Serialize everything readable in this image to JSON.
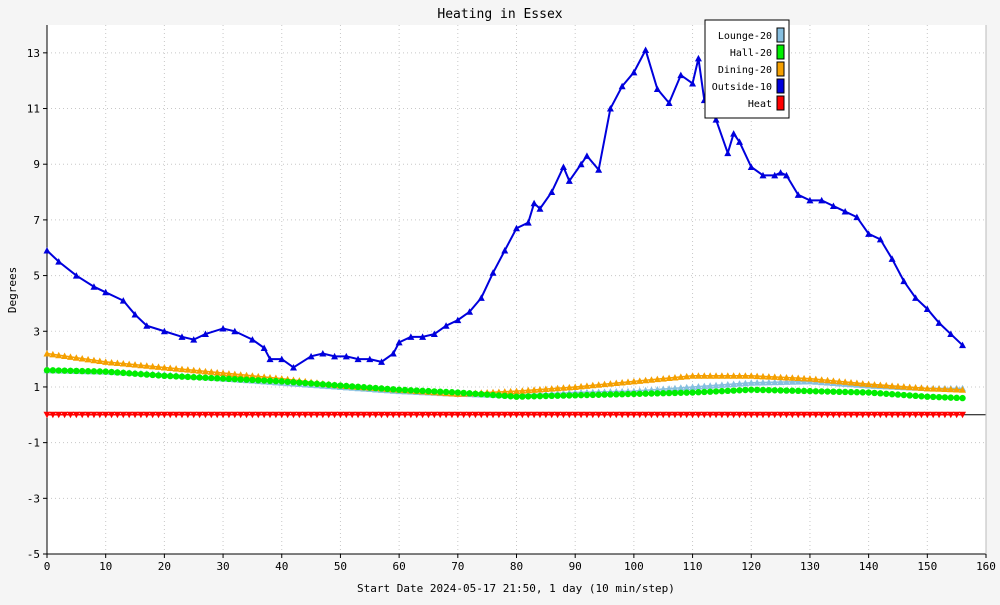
{
  "chart_data": {
    "type": "line",
    "title": "Heating in Essex",
    "xlabel": "Start Date 2024-05-17 21:50, 1 day (10 min/step)",
    "ylabel": "Degrees",
    "xlim": [
      0,
      160
    ],
    "ylim": [
      -5,
      14
    ],
    "x_ticks": [
      0,
      10,
      20,
      30,
      40,
      50,
      60,
      70,
      80,
      90,
      100,
      110,
      120,
      130,
      140,
      150,
      160
    ],
    "y_ticks": [
      -5,
      -3,
      -1,
      1,
      3,
      5,
      7,
      9,
      11,
      13
    ],
    "grid": true,
    "legend_position": "top-right",
    "series": [
      {
        "name": "Lounge-20",
        "color": "#87bfe0",
        "marker": "triangle",
        "x": [
          0,
          10,
          20,
          30,
          40,
          50,
          60,
          70,
          80,
          90,
          100,
          110,
          120,
          130,
          140,
          150,
          156
        ],
        "values": [
          1.6,
          1.55,
          1.45,
          1.3,
          1.15,
          1.0,
          0.85,
          0.75,
          0.7,
          0.8,
          0.85,
          1.0,
          1.15,
          1.2,
          1.05,
          0.95,
          0.95
        ]
      },
      {
        "name": "Hall-20",
        "color": "#00ee00",
        "marker": "circle",
        "x": [
          0,
          10,
          20,
          30,
          40,
          50,
          60,
          70,
          80,
          90,
          100,
          110,
          120,
          130,
          140,
          150,
          156
        ],
        "values": [
          1.6,
          1.55,
          1.4,
          1.3,
          1.2,
          1.05,
          0.9,
          0.8,
          0.65,
          0.7,
          0.75,
          0.8,
          0.9,
          0.85,
          0.8,
          0.65,
          0.6
        ]
      },
      {
        "name": "Dining-20",
        "color": "#f5a000",
        "marker": "triangle",
        "x": [
          0,
          10,
          20,
          30,
          40,
          50,
          60,
          70,
          80,
          90,
          100,
          110,
          120,
          130,
          140,
          150,
          156
        ],
        "values": [
          2.2,
          1.9,
          1.7,
          1.5,
          1.3,
          1.05,
          0.9,
          0.75,
          0.85,
          1.0,
          1.2,
          1.4,
          1.4,
          1.3,
          1.1,
          0.95,
          0.9
        ]
      },
      {
        "name": "Outside-10",
        "color": "#0000dd",
        "marker": "triangle",
        "x": [
          0,
          2,
          5,
          8,
          10,
          13,
          15,
          17,
          20,
          23,
          25,
          27,
          30,
          32,
          35,
          37,
          38,
          40,
          42,
          45,
          47,
          49,
          51,
          53,
          55,
          57,
          59,
          60,
          62,
          64,
          66,
          68,
          70,
          72,
          74,
          76,
          78,
          80,
          82,
          83,
          84,
          86,
          88,
          89,
          91,
          92,
          94,
          96,
          98,
          100,
          102,
          104,
          106,
          108,
          110,
          111,
          112,
          114,
          116,
          117,
          118,
          120,
          122,
          124,
          125,
          126,
          128,
          130,
          132,
          134,
          136,
          138,
          140,
          142,
          144,
          146,
          148,
          150,
          152,
          154,
          156
        ],
        "values": [
          5.9,
          5.5,
          5.0,
          4.6,
          4.4,
          4.1,
          3.6,
          3.2,
          3.0,
          2.8,
          2.7,
          2.9,
          3.1,
          3.0,
          2.7,
          2.4,
          2.0,
          2.0,
          1.7,
          2.1,
          2.2,
          2.1,
          2.1,
          2.0,
          2.0,
          1.9,
          2.2,
          2.6,
          2.8,
          2.8,
          2.9,
          3.2,
          3.4,
          3.7,
          4.2,
          5.1,
          5.9,
          6.7,
          6.9,
          7.6,
          7.4,
          8.0,
          8.9,
          8.4,
          9.0,
          9.3,
          8.8,
          11.0,
          11.8,
          12.3,
          13.1,
          11.7,
          11.2,
          12.2,
          11.9,
          12.8,
          11.3,
          10.6,
          9.4,
          10.1,
          9.8,
          8.9,
          8.6,
          8.6,
          8.7,
          8.6,
          7.9,
          7.7,
          7.7,
          7.5,
          7.3,
          7.1,
          6.5,
          6.3,
          5.6,
          4.8,
          4.2,
          3.8,
          3.3,
          2.9,
          2.5
        ]
      },
      {
        "name": "Heat",
        "color": "#ff0000",
        "marker": "triangle-down",
        "x": [
          0,
          156
        ],
        "values": [
          0,
          0
        ]
      }
    ]
  }
}
